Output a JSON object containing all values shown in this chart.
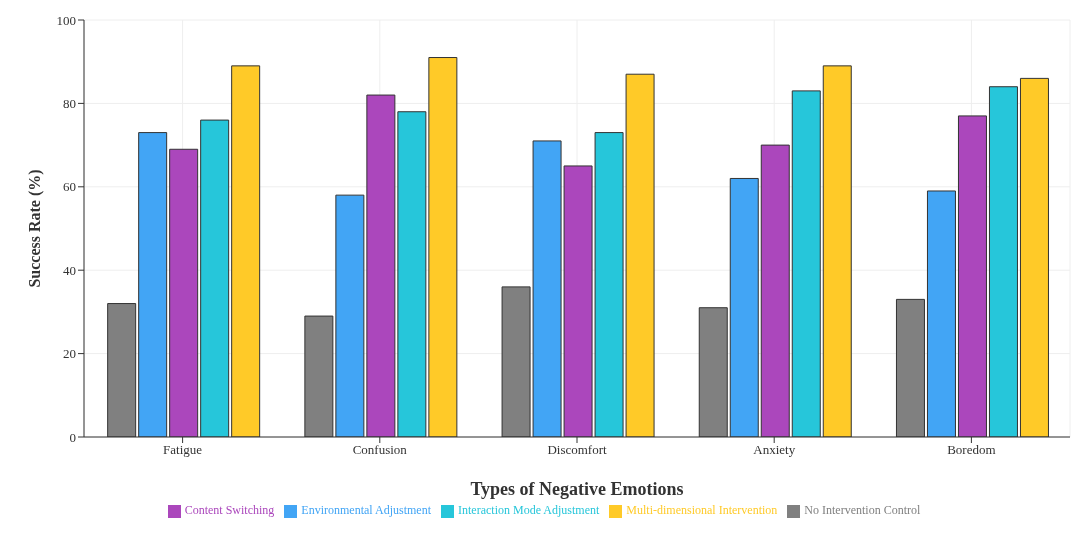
{
  "chart_data": {
    "type": "bar",
    "xlabel": "Types of Negative Emotions",
    "ylabel": "Success Rate (%)",
    "categories": [
      "Fatigue",
      "Confusion",
      "Discomfort",
      "Anxiety",
      "Boredom"
    ],
    "series": [
      {
        "name": "No Intervention Control",
        "color": "#808080",
        "values": [
          32,
          29,
          36,
          31,
          33
        ]
      },
      {
        "name": "Environmental Adjustment",
        "color": "#42a5f5",
        "values": [
          73,
          58,
          71,
          62,
          59
        ]
      },
      {
        "name": "Content Switching",
        "color": "#ab47bc",
        "values": [
          69,
          82,
          65,
          70,
          77
        ]
      },
      {
        "name": "Interaction Mode Adjustment",
        "color": "#26c6da",
        "values": [
          76,
          78,
          73,
          83,
          84
        ]
      },
      {
        "name": "Multi-dimensional Intervention",
        "color": "#ffca28",
        "values": [
          89,
          91,
          87,
          89,
          86
        ]
      }
    ],
    "ylim": [
      0,
      100
    ],
    "yticks": [
      0,
      20,
      40,
      60,
      80,
      100
    ],
    "grid": true,
    "legend": "bottom"
  }
}
